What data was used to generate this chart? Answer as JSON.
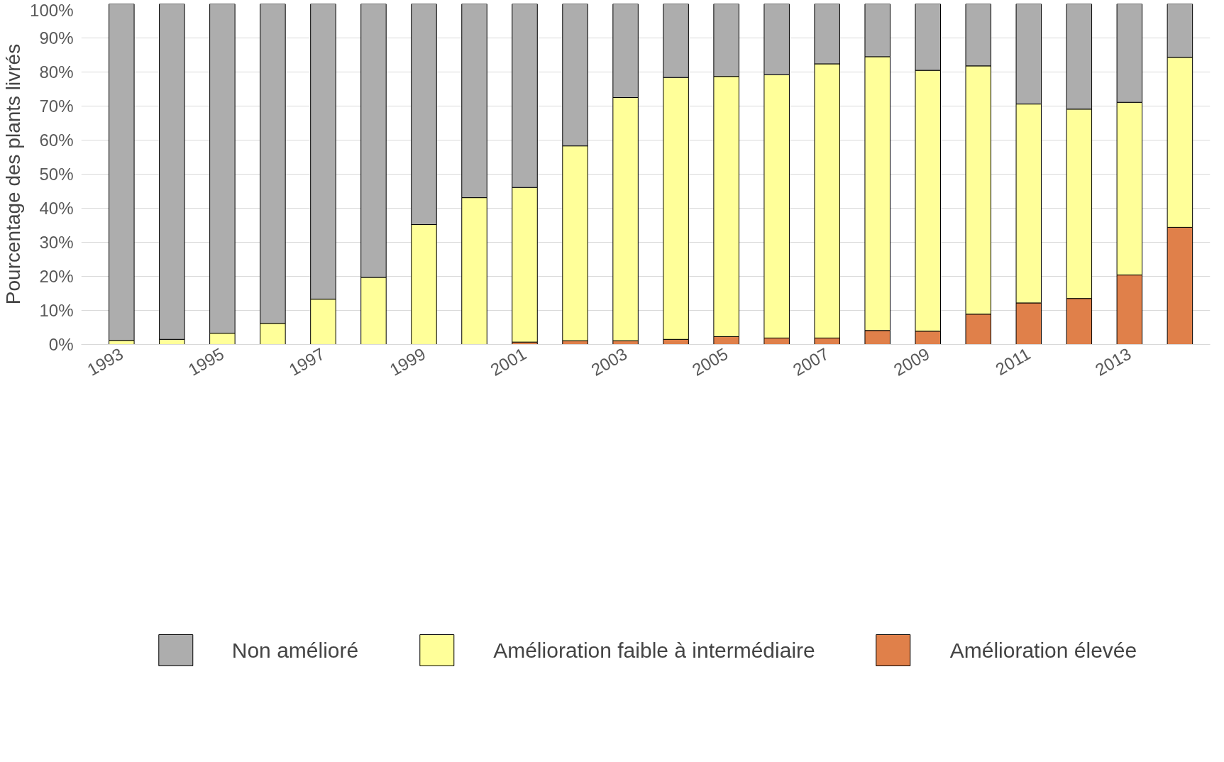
{
  "chart_data": {
    "type": "bar",
    "stacked": true,
    "ylabel": "Pourcentage des plants livrés",
    "categories": [
      "1993",
      null,
      "1995",
      null,
      "1997",
      null,
      "1999",
      null,
      "2001",
      null,
      "2003",
      null,
      "2005",
      null,
      "2007",
      null,
      "2009",
      null,
      "2011",
      null,
      "2013",
      null
    ],
    "series": [
      {
        "name": "Amélioration élevée",
        "color": "#e0804a",
        "values": [
          0,
          0,
          0,
          0,
          0,
          0,
          0,
          0,
          0.7,
          1.1,
          1.1,
          1.5,
          2.3,
          1.9,
          1.9,
          4.1,
          3.9,
          8.9,
          12.2,
          13.5,
          20.4,
          34.4
        ]
      },
      {
        "name": "Amélioration faible à intermédiaire",
        "color": "#ffff99",
        "values": [
          1.2,
          1.5,
          3.3,
          6.2,
          13.3,
          19.7,
          35.2,
          43.1,
          45.4,
          57.2,
          71.4,
          76.9,
          76.4,
          77.3,
          80.5,
          80.4,
          76.6,
          72.9,
          58.4,
          55.6,
          50.7,
          49.9
        ]
      },
      {
        "name": "Non amélioré",
        "color": "#adadad",
        "values": [
          98.8,
          98.5,
          96.7,
          93.8,
          86.7,
          80.3,
          64.8,
          56.9,
          53.9,
          41.7,
          27.5,
          21.6,
          21.3,
          20.8,
          17.6,
          15.5,
          19.5,
          18.2,
          29.4,
          30.9,
          28.9,
          15.7
        ]
      }
    ],
    "ylim": [
      0,
      100
    ],
    "yticks": [
      {
        "value": 0,
        "label": "0%"
      },
      {
        "value": 10,
        "label": "10%"
      },
      {
        "value": 20,
        "label": "20%"
      },
      {
        "value": 30,
        "label": "30%"
      },
      {
        "value": 40,
        "label": "40%"
      },
      {
        "value": 50,
        "label": "50%"
      },
      {
        "value": 60,
        "label": "60%"
      },
      {
        "value": 70,
        "label": "70%"
      },
      {
        "value": 80,
        "label": "80%"
      },
      {
        "value": 90,
        "label": "90%"
      },
      {
        "value": 100,
        "label": "100%"
      }
    ],
    "grid": "y",
    "legend": "bottom"
  }
}
